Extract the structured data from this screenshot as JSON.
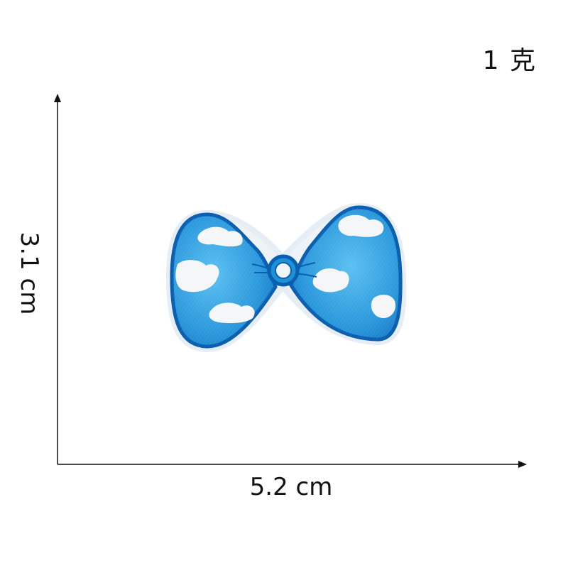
{
  "weight_label": "1 克",
  "dimensions": {
    "width_label": "5.2 cm",
    "height_label": "3.1 cm"
  },
  "colors": {
    "patch_blue": "#1f8fd6",
    "patch_light": "#4fb6ee",
    "patch_outline": "#0a5fb0",
    "cloud_white": "#f4f6f8",
    "axis_color": "#111111"
  },
  "product": {
    "icon": "bow-tie-embroidered-patch"
  }
}
